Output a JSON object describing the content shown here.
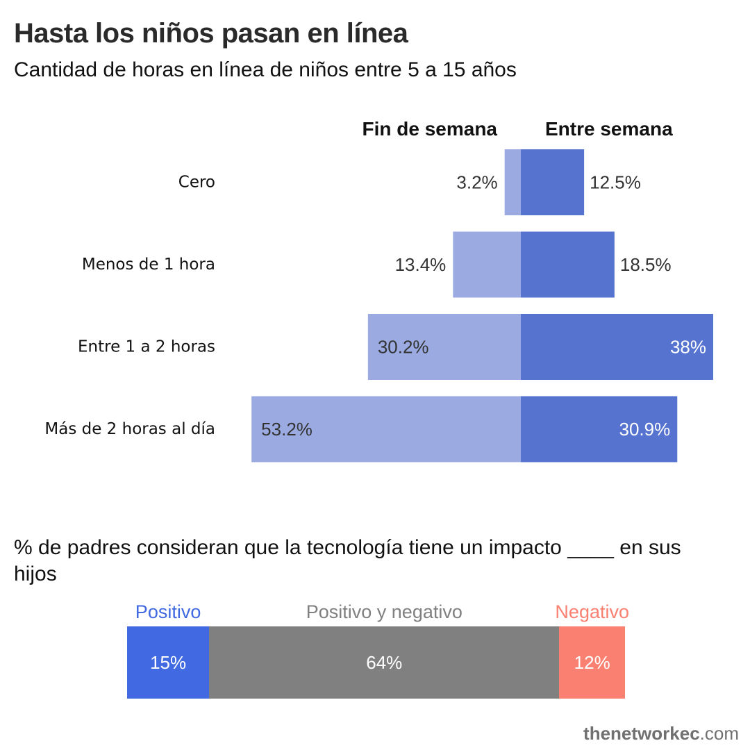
{
  "header": {
    "title": "Hasta los niños pasan en línea",
    "subtitle": "Cantidad de horas en línea de niños entre 5 a 15 años"
  },
  "chart_data": [
    {
      "type": "bar",
      "orientation": "horizontal-diverging",
      "categories": [
        "Cero",
        "Menos de 1 hora",
        "Entre 1 a 2 horas",
        "Más de 2 horas al día"
      ],
      "series": [
        {
          "name": "Fin de semana",
          "values": [
            3.2,
            13.4,
            30.2,
            53.2
          ],
          "labels": [
            "3.2%",
            "13.4%",
            "30.2%",
            "53.2%"
          ],
          "color": "#9BABE1"
        },
        {
          "name": "Entre semana",
          "values": [
            12.5,
            18.5,
            38,
            30.9
          ],
          "labels": [
            "12.5%",
            "18.5%",
            "38%",
            "30.9%"
          ],
          "color": "#5573CF"
        }
      ],
      "unit": "%",
      "grid": false
    },
    {
      "type": "bar",
      "orientation": "horizontal-stacked",
      "title": "% de padres consideran que la tecnología tiene un impacto ____ en sus hijos",
      "categories": [
        "Positivo",
        "Positivo y negativo",
        "Negativo"
      ],
      "values": [
        15,
        64,
        12
      ],
      "labels": [
        "15%",
        "64%",
        "12%"
      ],
      "colors": [
        "#4169E1",
        "#808080",
        "#FA8072"
      ],
      "unit": "%"
    }
  ],
  "footer": {
    "credit_bold": "thenetworkec",
    "credit_rest": ".com"
  }
}
